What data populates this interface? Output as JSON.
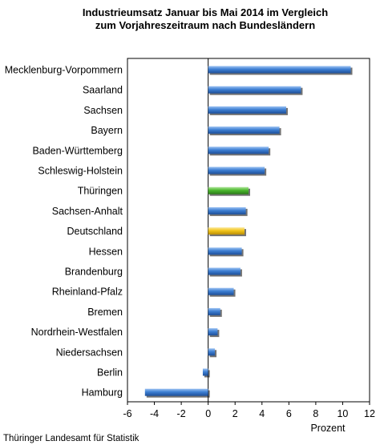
{
  "chart_data": {
    "type": "bar",
    "orientation": "horizontal",
    "title_lines": [
      "Industrieumsatz Januar bis Mai 2014 im Vergleich",
      "zum Vorjahreszeitraum nach Bundesländern"
    ],
    "xlabel": "Prozent",
    "source": "Thüringer Landesamt für Statistik",
    "xlim": [
      -6,
      12
    ],
    "xticks": [
      -6,
      -4,
      -2,
      0,
      2,
      4,
      6,
      8,
      10,
      12
    ],
    "grid": false,
    "categories": [
      "Mecklenburg-Vorpommern",
      "Saarland",
      "Sachsen",
      "Bayern",
      "Baden-Württemberg",
      "Schleswig-Holstein",
      "Thüringen",
      "Sachsen-Anhalt",
      "Deutschland",
      "Hessen",
      "Brandenburg",
      "Rheinland-Pfalz",
      "Bremen",
      "Nordrhein-Westfalen",
      "Niedersachsen",
      "Berlin",
      "Hamburg"
    ],
    "values": [
      10.6,
      6.9,
      5.8,
      5.3,
      4.5,
      4.2,
      3.0,
      2.8,
      2.7,
      2.5,
      2.4,
      1.9,
      0.9,
      0.7,
      0.5,
      -0.4,
      -4.7
    ],
    "colors": {
      "default": "#3d7fd3",
      "Thüringen": "#4cb82e",
      "Deutschland": "#f2c418"
    }
  }
}
